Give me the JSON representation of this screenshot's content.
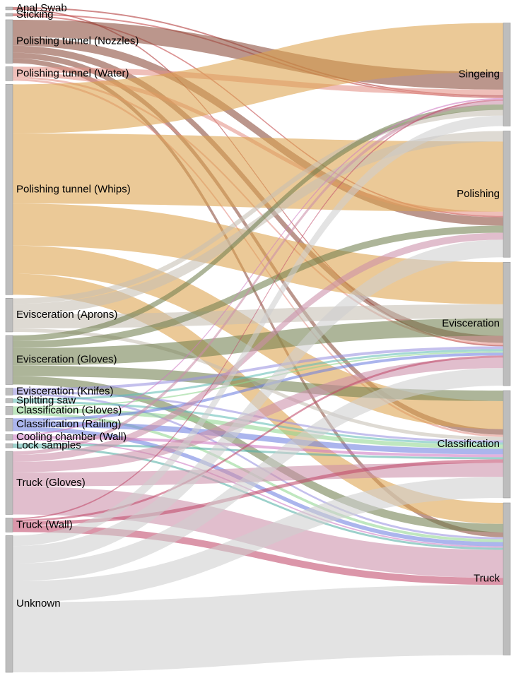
{
  "chart_data": {
    "type": "sankey",
    "title": "",
    "legend": "none",
    "orientation": "left-to-right",
    "node_bar_color": "#bdbdbd",
    "node_bar_border": "#9a9a9a",
    "flow_opacity": 0.58,
    "left_nodes": [
      {
        "id": "anal_swab",
        "label": "Anal Swab",
        "color": "#b03535"
      },
      {
        "id": "sticking",
        "label": "Sticking",
        "color": "#c24646"
      },
      {
        "id": "pt_nozzles",
        "label": "Polishing tunnel (Nozzles)",
        "color": "#8a4a38"
      },
      {
        "id": "pt_water",
        "label": "Polishing tunnel (Water)",
        "color": "#e49086"
      },
      {
        "id": "pt_whips",
        "label": "Polishing tunnel (Whips)",
        "color": "#dca24c"
      },
      {
        "id": "ev_aprons",
        "label": "Evisceration (Aprons)",
        "color": "#c6c0b4"
      },
      {
        "id": "ev_gloves",
        "label": "Evisceration (Gloves)",
        "color": "#71804f"
      },
      {
        "id": "ev_knifes",
        "label": "Evisceration (Knifes)",
        "color": "#9a92e0"
      },
      {
        "id": "splitting_saw",
        "label": "Splitting saw",
        "color": "#62bdb5"
      },
      {
        "id": "cl_gloves",
        "label": "Classification (Gloves)",
        "color": "#90d690"
      },
      {
        "id": "cl_railing",
        "label": "Classification (Railing)",
        "color": "#6f7fe0"
      },
      {
        "id": "cool_wall",
        "label": "Cooling chamber (Wall)",
        "color": "#cf7bc3"
      },
      {
        "id": "lock_samples",
        "label": "Lock samples",
        "color": "#55b0a6"
      },
      {
        "id": "truck_gloves",
        "label": "Truck (Gloves)",
        "color": "#cc8fa9"
      },
      {
        "id": "truck_wall",
        "label": "Truck (Wall)",
        "color": "#c14a6a"
      },
      {
        "id": "unknown",
        "label": "Unknown",
        "color": "#cfcfcf"
      }
    ],
    "right_nodes": [
      {
        "id": "singeing",
        "label": "Singeing"
      },
      {
        "id": "polishing",
        "label": "Polishing"
      },
      {
        "id": "evisceration",
        "label": "Evisceration"
      },
      {
        "id": "classification",
        "label": "Classification"
      },
      {
        "id": "truck",
        "label": "Truck"
      }
    ],
    "links": [
      {
        "source": "anal_swab",
        "target": "singeing",
        "value": 2,
        "torder": 3
      },
      {
        "source": "anal_swab",
        "target": "evisceration",
        "value": 2,
        "torder": 5
      },
      {
        "source": "sticking",
        "target": "singeing",
        "value": 2,
        "torder": 4
      },
      {
        "source": "sticking",
        "target": "polishing",
        "value": 2,
        "torder": 3
      },
      {
        "source": "pt_nozzles",
        "target": "singeing",
        "value": 25,
        "torder": 1
      },
      {
        "source": "pt_nozzles",
        "target": "polishing",
        "value": 12,
        "torder": 4
      },
      {
        "source": "pt_nozzles",
        "target": "evisceration",
        "value": 10,
        "torder": 3
      },
      {
        "source": "pt_nozzles",
        "target": "classification",
        "value": 8,
        "torder": 2
      },
      {
        "source": "pt_nozzles",
        "target": "truck",
        "value": 7,
        "torder": 2
      },
      {
        "source": "pt_water",
        "target": "singeing",
        "value": 8,
        "torder": 2
      },
      {
        "source": "pt_water",
        "target": "polishing",
        "value": 6,
        "torder": 2
      },
      {
        "source": "pt_water",
        "target": "evisceration",
        "value": 3,
        "torder": 4
      },
      {
        "source": "pt_water",
        "target": "classification",
        "value": 3,
        "torder": 3
      },
      {
        "source": "pt_whips",
        "target": "singeing",
        "value": 70,
        "torder": 0
      },
      {
        "source": "pt_whips",
        "target": "polishing",
        "value": 100,
        "torder": 1
      },
      {
        "source": "pt_whips",
        "target": "evisceration",
        "value": 60,
        "torder": 0
      },
      {
        "source": "pt_whips",
        "target": "classification",
        "value": 40,
        "torder": 1
      },
      {
        "source": "pt_whips",
        "target": "truck",
        "value": 30,
        "torder": 0
      },
      {
        "source": "ev_aprons",
        "target": "singeing",
        "value": 8,
        "torder": 9
      },
      {
        "source": "ev_aprons",
        "target": "polishing",
        "value": 15,
        "torder": 0
      },
      {
        "source": "ev_aprons",
        "target": "evisceration",
        "value": 20,
        "torder": 1
      },
      {
        "source": "ev_aprons",
        "target": "classification",
        "value": 5,
        "torder": 4
      },
      {
        "source": "ev_gloves",
        "target": "singeing",
        "value": 8,
        "torder": 8
      },
      {
        "source": "ev_gloves",
        "target": "polishing",
        "value": 10,
        "torder": 5
      },
      {
        "source": "ev_gloves",
        "target": "evisceration",
        "value": 25,
        "torder": 2
      },
      {
        "source": "ev_gloves",
        "target": "classification",
        "value": 15,
        "torder": 0
      },
      {
        "source": "ev_gloves",
        "target": "truck",
        "value": 12,
        "torder": 1
      },
      {
        "source": "ev_knifes",
        "target": "evisceration",
        "value": 4,
        "torder": 6
      },
      {
        "source": "ev_knifes",
        "target": "classification",
        "value": 3,
        "torder": 5
      },
      {
        "source": "ev_knifes",
        "target": "truck",
        "value": 3,
        "torder": 3
      },
      {
        "source": "splitting_saw",
        "target": "evisceration",
        "value": 3,
        "torder": 7
      },
      {
        "source": "splitting_saw",
        "target": "classification",
        "value": 3,
        "torder": 6
      },
      {
        "source": "cl_gloves",
        "target": "evisceration",
        "value": 2,
        "torder": 8
      },
      {
        "source": "cl_gloves",
        "target": "classification",
        "value": 6,
        "torder": 7
      },
      {
        "source": "cl_gloves",
        "target": "truck",
        "value": 4,
        "torder": 4
      },
      {
        "source": "cl_railing",
        "target": "evisceration",
        "value": 4,
        "torder": 9
      },
      {
        "source": "cl_railing",
        "target": "classification",
        "value": 8,
        "torder": 8
      },
      {
        "source": "cl_railing",
        "target": "truck",
        "value": 6,
        "torder": 5
      },
      {
        "source": "cool_wall",
        "target": "singeing",
        "value": 2,
        "torder": 5
      },
      {
        "source": "cool_wall",
        "target": "classification",
        "value": 4,
        "torder": 9
      },
      {
        "source": "cool_wall",
        "target": "truck",
        "value": 2,
        "torder": 6
      },
      {
        "source": "lock_samples",
        "target": "classification",
        "value": 3,
        "torder": 10
      },
      {
        "source": "lock_samples",
        "target": "truck",
        "value": 3,
        "torder": 7
      },
      {
        "source": "truck_gloves",
        "target": "singeing",
        "value": 5,
        "torder": 7
      },
      {
        "source": "truck_gloves",
        "target": "polishing",
        "value": 10,
        "torder": 6
      },
      {
        "source": "truck_gloves",
        "target": "evisceration",
        "value": 15,
        "torder": 11
      },
      {
        "source": "truck_gloves",
        "target": "classification",
        "value": 20,
        "torder": 12
      },
      {
        "source": "truck_gloves",
        "target": "truck",
        "value": 40,
        "torder": 8
      },
      {
        "source": "truck_wall",
        "target": "singeing",
        "value": 2,
        "torder": 6
      },
      {
        "source": "truck_wall",
        "target": "evisceration",
        "value": 3,
        "torder": 10
      },
      {
        "source": "truck_wall",
        "target": "classification",
        "value": 5,
        "torder": 11
      },
      {
        "source": "truck_wall",
        "target": "truck",
        "value": 10,
        "torder": 9
      },
      {
        "source": "unknown",
        "target": "singeing",
        "value": 15,
        "torder": 10
      },
      {
        "source": "unknown",
        "target": "polishing",
        "value": 25,
        "torder": 7
      },
      {
        "source": "unknown",
        "target": "evisceration",
        "value": 25,
        "torder": 12
      },
      {
        "source": "unknown",
        "target": "classification",
        "value": 30,
        "torder": 13
      },
      {
        "source": "unknown",
        "target": "truck",
        "value": 100,
        "torder": 10
      }
    ]
  }
}
